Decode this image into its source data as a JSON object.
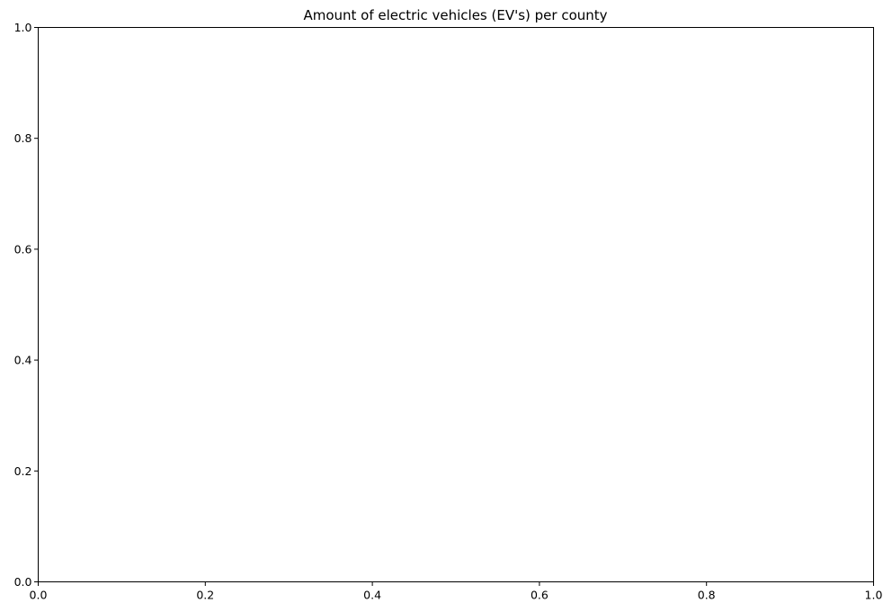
{
  "chart_data": {
    "type": "scatter",
    "title": "Amount of electric vehicles (EV's) per county",
    "xlabel": "",
    "ylabel": "",
    "xlim": [
      0.0,
      1.0
    ],
    "ylim": [
      0.0,
      1.0
    ],
    "xticks": [
      "0.0",
      "0.2",
      "0.4",
      "0.6",
      "0.8",
      "1.0"
    ],
    "yticks": [
      "0.0",
      "0.2",
      "0.4",
      "0.6",
      "0.8",
      "1.0"
    ],
    "series": [],
    "grid": false,
    "legend": "none"
  }
}
